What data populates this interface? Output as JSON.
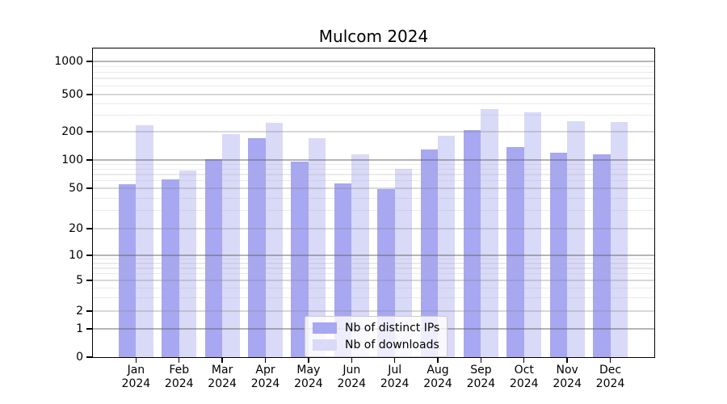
{
  "title": "Mulcom 2024",
  "chart_data": {
    "type": "bar",
    "title": "Mulcom 2024",
    "categories": [
      "Jan 2024",
      "Feb 2024",
      "Mar 2024",
      "Apr 2024",
      "May 2024",
      "Jun 2024",
      "Jul 2024",
      "Aug 2024",
      "Sep 2024",
      "Oct 2024",
      "Nov 2024",
      "Dec 2024"
    ],
    "series": [
      {
        "name": "Nb of distinct IPs",
        "color": "#a7a7f2",
        "values": [
          55,
          62,
          102,
          172,
          97,
          56,
          49,
          130,
          210,
          138,
          119,
          115
        ]
      },
      {
        "name": "Nb of downloads",
        "color": "#d9d9f8",
        "values": [
          235,
          77,
          190,
          248,
          172,
          115,
          80,
          180,
          350,
          320,
          260,
          255
        ]
      }
    ],
    "xlabel": "",
    "ylabel": "",
    "y_ticks": [
      0,
      1,
      2,
      5,
      10,
      20,
      50,
      100,
      200,
      500,
      1000
    ],
    "y_scale": "asinh",
    "ylim": [
      0,
      1400
    ],
    "grid": "horizontal",
    "y_major_gridline_values": [
      1,
      10,
      100,
      1000
    ],
    "y_minor_gridlines": [
      3,
      4,
      6,
      7,
      8,
      9,
      30,
      40,
      60,
      70,
      80,
      90,
      300,
      400,
      600,
      700,
      800,
      900
    ],
    "legend_position": "lower center"
  }
}
